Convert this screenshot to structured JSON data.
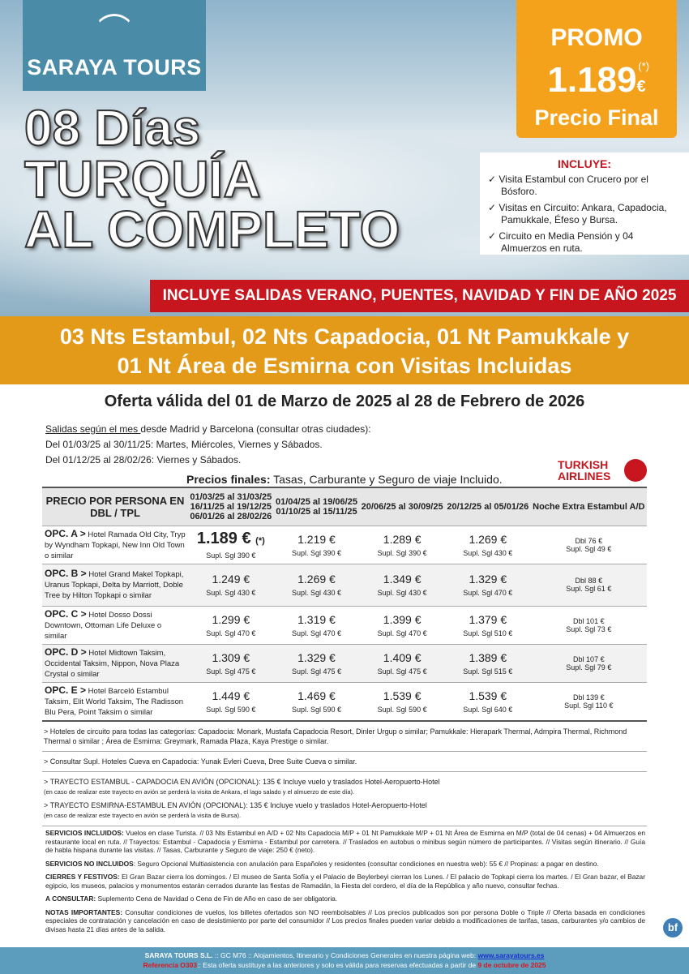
{
  "brand": {
    "name": "SARAYA TOURS"
  },
  "promo": {
    "label": "PROMO",
    "asterisk": "(*)",
    "price": "1.189",
    "currency": "€",
    "final": "Precio Final"
  },
  "title": {
    "line1": "08 Días",
    "line2": "TURQUÍA",
    "line3": "AL COMPLETO"
  },
  "includes": {
    "heading": "INCLUYE:",
    "items": [
      "Visita Estambul con Crucero por el Bósforo.",
      "Visitas en Circuito: Ankara, Capadocia, Pamukkale, Éfeso y Bursa.",
      "Circuito en Media Pensión y 04 Almuerzos en ruta."
    ]
  },
  "banner": "INCLUYE SALIDAS VERANO, PUENTES, NAVIDAD Y FIN DE AÑO 2025",
  "itinerary": {
    "line1": "03 Nts Estambul, 02 Nts Capadocia, 01 Nt Pamukkale y",
    "line2": "01 Nt Área de Esmirna con Visitas Incluidas"
  },
  "offer": "Oferta válida del 01 de Marzo de 2025 al 28 de Febrero de 2026",
  "departures": {
    "underlined": "Salidas según el mes ",
    "intro": "desde Madrid y Barcelona (consultar otras ciudades):",
    "line1": "Del 01/03/25 al 30/11/25: Martes, Miércoles, Viernes y Sábados.",
    "line2": "Del 01/12/25 al 28/02/26: Viernes y Sábados."
  },
  "prices_note": {
    "bold": "Precios finales:",
    "text": " Tasas, Carburante y Seguro de viaje Incluido."
  },
  "airline": {
    "line1": "TURKISH",
    "line2": "AIRLINES"
  },
  "table": {
    "headers": [
      "PRECIO POR PERSONA EN DBL / TPL",
      "01/03/25 al 31/03/25\n16/11/25 al 19/12/25\n06/01/26 al 28/02/26",
      "01/04/25 al 19/06/25\n01/10/25 al 15/11/25",
      "20/06/25 al 30/09/25",
      "20/12/25 al 05/01/26",
      "Noche Extra Estambul A/D"
    ],
    "rows": [
      {
        "opt": "OPC. A >",
        "hotels": " Hotel Ramada Old City, Tryp by Wyndham Topkapi, New Inn Old Town o similar",
        "prices": [
          "1.189 €",
          "1.219 €",
          "1.289 €",
          "1.269 €"
        ],
        "mark": "(*)",
        "supl": [
          "Supl. Sgl 390 €",
          "Supl. Sgl 390 €",
          "Supl. Sgl 390 €",
          "Supl. Sgl 430 €"
        ],
        "extra": [
          "Dbl 76 €",
          "Supl. Sgl 49 €"
        ]
      },
      {
        "opt": "OPC. B >",
        "hotels": " Hotel Grand Makel Topkapi, Uranus Topkapi, Delta by Marriott, Doble Tree by Hilton Topkapi o similar",
        "prices": [
          "1.249 €",
          "1.269 €",
          "1.349 €",
          "1.329 €"
        ],
        "supl": [
          "Supl. Sgl 430 €",
          "Supl. Sgl 430 €",
          "Supl. Sgl 430 €",
          "Supl. Sgl 470 €"
        ],
        "extra": [
          "Dbl 88 €",
          "Supl. Sgl 61 €"
        ]
      },
      {
        "opt": "OPC. C >",
        "hotels": " Hotel Dosso Dossi Downtown, Ottoman Life Deluxe o similar",
        "prices": [
          "1.299 €",
          "1.319 €",
          "1.399 €",
          "1.379 €"
        ],
        "supl": [
          "Supl. Sgl 470 €",
          "Supl. Sgl 470 €",
          "Supl. Sgl 470 €",
          "Supl. Sgl 510 €"
        ],
        "extra": [
          "Dbl 101 €",
          "Supl. Sgl 73 €"
        ]
      },
      {
        "opt": "OPC. D >",
        "hotels": " Hotel Midtown Taksim, Occidental Taksim, Nippon, Nova Plaza Crystal o similar",
        "prices": [
          "1.309 €",
          "1.329 €",
          "1.409 €",
          "1.389 €"
        ],
        "supl": [
          "Supl. Sgl 475 €",
          "Supl. Sgl 475 €",
          "Supl. Sgl 475 €",
          "Supl. Sgl 515 €"
        ],
        "extra": [
          "Dbl 107 €",
          "Supl. Sgl 79 €"
        ]
      },
      {
        "opt": "OPC. E >",
        "hotels": " Hotel Barceló Estambul Taksim, Elit World Taksim, The Radisson Blu Pera, Point Taksim o similar",
        "prices": [
          "1.449 €",
          "1.469 €",
          "1.539 €",
          "1.539 €"
        ],
        "supl": [
          "Supl. Sgl 590 €",
          "Supl. Sgl 590 €",
          "Supl. Sgl 590 €",
          "Supl. Sgl 640 €"
        ],
        "extra": [
          "Dbl 139 €",
          "Supl. Sgl 110 €"
        ]
      }
    ]
  },
  "notes": [
    {
      "text": "> Hoteles de circuito para todas las categorías: Capadocia: Monark, Mustafa Capadocia Resort, Dinler Urgup o similar; Pamukkale: Hierapark Thermal, Admpira Thermal, Richmond Thermal o similar ; Área de Esmirna: Greymark, Ramada Plaza, Kaya Prestige o similar."
    },
    {
      "text": "> Consultar Supl. Hoteles Cueva en Capadocia: Yunak Evleri Cueva, Dree Suite Cueva o similar."
    },
    {
      "text": "> TRAYECTO ESTAMBUL - CAPADOCIA EN AVIÓN (OPCIONAL): 135 € Incluye vuelo y traslados Hotel-Aeropuerto-Hotel",
      "small": "(en caso de realizar este trayecto en avión se perderá la visita de Ankara, el lago salado y el almuerzo de este día).",
      "text2": "> TRAYECTO ESMIRNA-ESTAMBUL EN AVIÓN (OPCIONAL): 135 € Incluye vuelo y traslados Hotel-Aeropuerto-Hotel",
      "small2": "(en caso de realizar este trayecto en avión se perderá la visita de Bursa)."
    }
  ],
  "legal": [
    {
      "label": "SERVICIOS INCLUIDOS:",
      "text": " Vuelos en clase Turista. // 03 Nts Estambul en A/D + 02 Nts Capadocia M/P + 01 Nt Pamukkale M/P + 01 Nt Área de Esmirna en M/P (total de 04 cenas) + 04 Almuerzos en restaurante local en ruta. // Trayectos: Estambul - Capadocia y Esmirna - Estambul por carretera. // Traslados en autobus o minibus según número de participantes. // Visitas según itinerario. // Guía de habla hispana durante las visitas. // Tasas, Carburante y Seguro de viaje: 250 € (neto)."
    },
    {
      "label": "SERVICIOS NO INCLUIDOS",
      "text": ": Seguro Opcional Multiasistencia con anulación para Españoles y residentes (consultar condiciones en nuestra web): 55 € // Propinas: a pagar en destino."
    },
    {
      "label": "CIERRES Y FESTIVOS:",
      "text": " El Gran Bazar cierra los domingos. / El museo de Santa Sofía y el Palacio de Beylerbeyi cierran los Lunes. / El palacio de Topkapi cierra los martes. / El Gran bazar, el Bazar egipcio, los museos, palacios y monumentos estarán cerrados durante las fiestas de Ramadán, la Fiesta del cordero, el día de la República y año nuevo, consultar fechas."
    },
    {
      "label": "A CONSULTAR:",
      "text": " Suplemento Cena de Navidad o Cena de Fin de Año en caso de ser obligatoria."
    },
    {
      "label": "NOTAS IMPORTANTES:",
      "text": " Consultar condiciones de vuelos, los billetes ofertados son NO reembolsables // Los precios publicados son por persona Doble o Triple // Oferta basada en condiciones especiales de contratación y cancelación en caso de desistimiento por parte del consumidor // Los precios finales pueden variar debido a modificaciones de tarifas, tasas, carburantes y/o cambios de divisas hasta 21 días antes de la salida."
    }
  ],
  "bf_badge": "bf",
  "footer": {
    "company": "SARAYA TOURS S.L.",
    "mid": " :: GC M76 ::  Alojamientos, Itinerario y Condiciones Generales en nuestra página web:  ",
    "url": "www.sarayatours.es",
    "ref": "Referencia O303",
    "text": ":: Esta oferta sustituye a las anteriores y solo es válida para reservas efectuadas a partir de ",
    "date": "9 de octubre de 2025"
  },
  "colors": {
    "logo": "#4a8ca8",
    "promo": "#f4a21c",
    "banner_red": "#c8161e",
    "band_orange": "#e49a19",
    "footer": "#5c9cbc"
  }
}
